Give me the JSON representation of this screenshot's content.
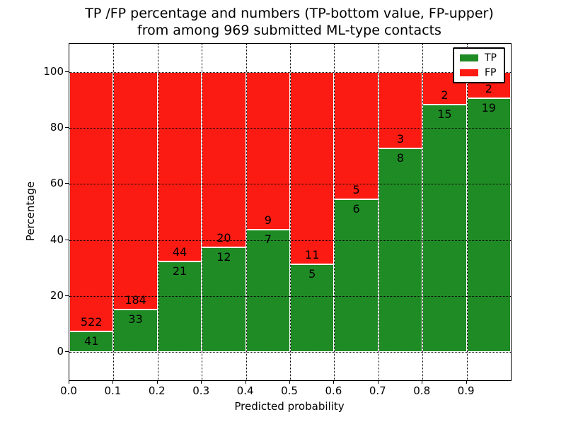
{
  "title": {
    "line1": "TP /FP percentage and numbers (TP-bottom value, FP-upper)",
    "line2": "from among 969 submitted ML-type contacts"
  },
  "axes": {
    "xlabel": "Predicted probability",
    "ylabel": "Percentage",
    "xtick_labels": [
      "0.0",
      "0.1",
      "0.2",
      "0.3",
      "0.4",
      "0.5",
      "0.6",
      "0.7",
      "0.8",
      "0.9"
    ],
    "ytick_values": [
      0,
      20,
      40,
      60,
      80,
      100
    ],
    "ytick_labels": [
      "0",
      "20",
      "40",
      "60",
      "80",
      "100"
    ],
    "ylim": [
      -10,
      110
    ],
    "xlim": [
      0,
      1
    ],
    "grid": "dotted"
  },
  "legend": {
    "position": "upper right",
    "items": [
      {
        "label": "TP",
        "color": "#1f8b24"
      },
      {
        "label": "FP",
        "color": "#fb1b12"
      }
    ]
  },
  "chart_data": {
    "type": "bar",
    "stacked": true,
    "normalized_to_percent": true,
    "title": "TP /FP percentage and numbers (TP-bottom value, FP-upper) from among 969 submitted ML-type contacts",
    "xlabel": "Predicted probability",
    "ylabel": "Percentage",
    "ylim": [
      -10,
      110
    ],
    "bins_start": [
      0.0,
      0.1,
      0.2,
      0.3,
      0.4,
      0.5,
      0.6,
      0.7,
      0.8,
      0.9
    ],
    "bin_width": 0.1,
    "series": [
      {
        "name": "TP",
        "color": "#1f8b24",
        "counts": [
          41,
          33,
          21,
          12,
          7,
          5,
          6,
          8,
          15,
          19
        ]
      },
      {
        "name": "FP",
        "color": "#fb1b12",
        "counts": [
          522,
          184,
          44,
          20,
          9,
          11,
          5,
          3,
          2,
          2
        ]
      }
    ],
    "tp_percent": [
      7.28,
      15.21,
      32.31,
      37.5,
      43.75,
      31.25,
      54.55,
      72.73,
      88.24,
      90.48
    ],
    "total_contacts": 969,
    "legend_position": "upper right",
    "grid": "dotted"
  }
}
